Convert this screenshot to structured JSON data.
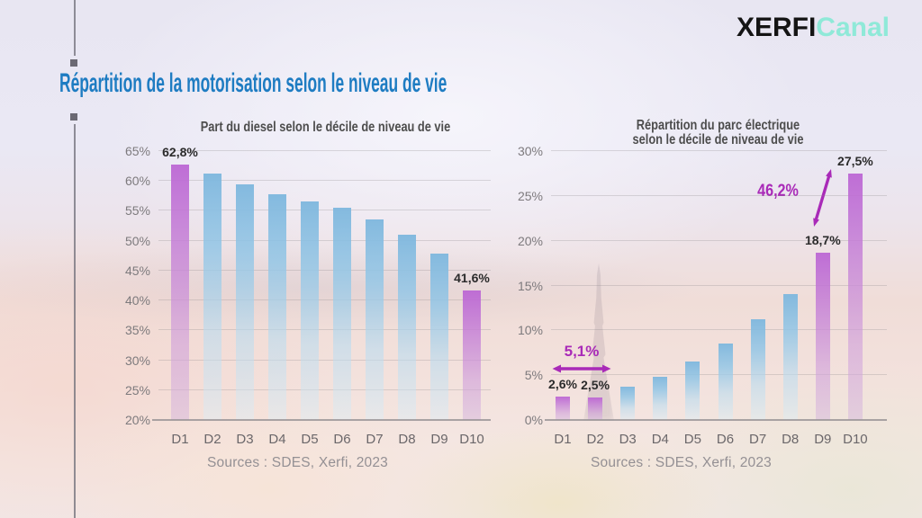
{
  "header": {
    "brand_black": "XERFI",
    "brand_teal": "Canal"
  },
  "page_title": "Répartition de la motorisation selon le niveau de vie",
  "colors": {
    "title_blue": "#1e7cc2",
    "brand_teal": "#8fe9d8",
    "magenta": "#a92ab8",
    "purple_bar": "#bc69d4",
    "blue_bar": "#82b9de"
  },
  "chart_data": [
    {
      "type": "bar",
      "title": "Part du diesel selon le décile de niveau de vie",
      "title_lines": [
        "Part du diesel selon le décile de niveau de vie"
      ],
      "categories": [
        "D1",
        "D2",
        "D3",
        "D4",
        "D5",
        "D6",
        "D7",
        "D8",
        "D9",
        "D10"
      ],
      "values": [
        62.8,
        61.3,
        59.5,
        57.8,
        56.6,
        55.5,
        53.5,
        51.0,
        47.8,
        41.6
      ],
      "unit": "%",
      "xlabel": "",
      "ylabel": "",
      "ylim": [
        20,
        65
      ],
      "grid": true,
      "legend": "none",
      "purple_indices": [
        0,
        9
      ],
      "yticks": [
        {
          "value": 20,
          "label": "20%"
        },
        {
          "value": 25,
          "label": "25%"
        },
        {
          "value": 30,
          "label": "30%"
        },
        {
          "value": 35,
          "label": "35%"
        },
        {
          "value": 40,
          "label": "40%"
        },
        {
          "value": 45,
          "label": "45%"
        },
        {
          "value": 50,
          "label": "50%"
        },
        {
          "value": 55,
          "label": "55%"
        },
        {
          "value": 60,
          "label": "60%"
        },
        {
          "value": 65,
          "label": "65%"
        }
      ],
      "value_labels": [
        {
          "index": 0,
          "text": "62,8%"
        },
        {
          "index": 9,
          "text": "41,6%"
        }
      ],
      "source": "Sources : SDES, Xerfi, 2023"
    },
    {
      "type": "bar",
      "title": "Répartition du parc électrique selon le décile de niveau de vie",
      "title_lines": [
        "Répartition du parc électrique",
        "selon le décile de niveau de vie"
      ],
      "categories": [
        "D1",
        "D2",
        "D3",
        "D4",
        "D5",
        "D6",
        "D7",
        "D8",
        "D9",
        "D10"
      ],
      "values": [
        2.6,
        2.5,
        3.7,
        4.8,
        6.5,
        8.5,
        11.2,
        14.0,
        18.7,
        27.5
      ],
      "unit": "%",
      "xlabel": "",
      "ylabel": "",
      "ylim": [
        0,
        30
      ],
      "grid": true,
      "legend": "none",
      "purple_indices": [
        0,
        1,
        8,
        9
      ],
      "yticks": [
        {
          "value": 0,
          "label": "0%"
        },
        {
          "value": 5,
          "label": "5%"
        },
        {
          "value": 10,
          "label": "10%"
        },
        {
          "value": 15,
          "label": "15%"
        },
        {
          "value": 20,
          "label": "20%"
        },
        {
          "value": 25,
          "label": "25%"
        },
        {
          "value": 30,
          "label": "30%"
        }
      ],
      "value_labels": [
        {
          "index": 0,
          "text": "2,6%"
        },
        {
          "index": 1,
          "text": "2,5%"
        },
        {
          "index": 8,
          "text": "18,7%"
        },
        {
          "index": 9,
          "text": "27,5%"
        }
      ],
      "annotations": [
        {
          "id": "sum-d1-d2",
          "text": "5,1%"
        },
        {
          "id": "growth-d9-d10",
          "text": "46,2%"
        }
      ],
      "source": "Sources : SDES, Xerfi, 2023"
    }
  ]
}
